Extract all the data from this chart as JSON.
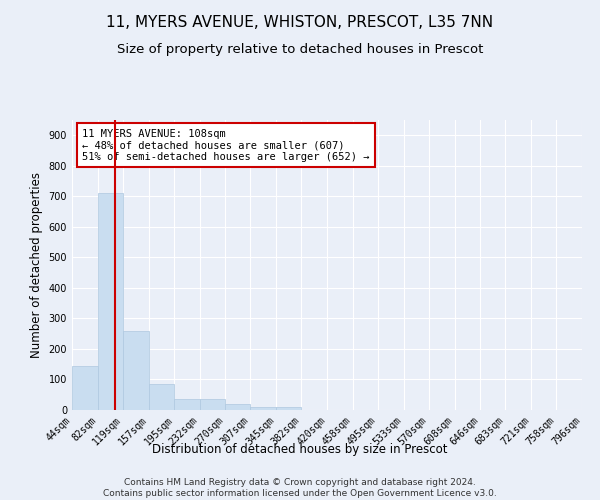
{
  "title_line1": "11, MYERS AVENUE, WHISTON, PRESCOT, L35 7NN",
  "title_line2": "Size of property relative to detached houses in Prescot",
  "xlabel": "Distribution of detached houses by size in Prescot",
  "ylabel": "Number of detached properties",
  "bin_edges": [
    44,
    82,
    119,
    157,
    195,
    232,
    270,
    307,
    345,
    382,
    420,
    458,
    495,
    533,
    570,
    608,
    646,
    683,
    721,
    758,
    796
  ],
  "bar_heights": [
    145,
    710,
    260,
    85,
    35,
    35,
    20,
    10,
    10,
    0,
    0,
    0,
    0,
    0,
    0,
    0,
    0,
    0,
    0,
    0
  ],
  "bar_color": "#c9ddf0",
  "bar_edgecolor": "#aec8e0",
  "property_size": 108,
  "red_line_color": "#cc0000",
  "annotation_text": "11 MYERS AVENUE: 108sqm\n← 48% of detached houses are smaller (607)\n51% of semi-detached houses are larger (652) →",
  "annotation_box_edgecolor": "#cc0000",
  "annotation_box_facecolor": "#ffffff",
  "ylim": [
    0,
    950
  ],
  "yticks": [
    0,
    100,
    200,
    300,
    400,
    500,
    600,
    700,
    800,
    900
  ],
  "footnote": "Contains HM Land Registry data © Crown copyright and database right 2024.\nContains public sector information licensed under the Open Government Licence v3.0.",
  "background_color": "#eaeff8",
  "plot_background_color": "#eaeff8",
  "grid_color": "#ffffff",
  "title_fontsize": 11,
  "subtitle_fontsize": 9.5,
  "tick_label_fontsize": 7,
  "ylabel_fontsize": 8.5,
  "xlabel_fontsize": 8.5,
  "annotation_fontsize": 7.5,
  "footnote_fontsize": 6.5
}
